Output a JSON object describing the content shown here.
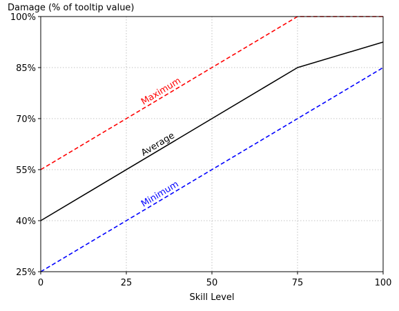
{
  "chart_data": {
    "type": "line",
    "title": "",
    "ylabel": "Damage (% of tooltip value)",
    "xlabel": "Skill Level",
    "xlim": [
      0,
      100
    ],
    "ylim": [
      25,
      100
    ],
    "xticks": [
      0,
      25,
      50,
      75,
      100
    ],
    "xtick_labels": [
      "0",
      "25",
      "50",
      "75",
      "100"
    ],
    "yticks": [
      25,
      40,
      55,
      70,
      85,
      100
    ],
    "ytick_labels": [
      "25%",
      "40%",
      "55%",
      "70%",
      "85%",
      "100%"
    ],
    "grid": true,
    "legend": "none",
    "series": [
      {
        "name": "Maximum",
        "color": "#ff0000",
        "style": "dashed",
        "x": [
          0,
          75,
          100
        ],
        "y": [
          55,
          100,
          100
        ]
      },
      {
        "name": "Average",
        "color": "#000000",
        "style": "solid",
        "x": [
          0,
          75,
          100
        ],
        "y": [
          40,
          85,
          92.5
        ]
      },
      {
        "name": "Minimum",
        "color": "#0000ff",
        "style": "dashed",
        "x": [
          0,
          75,
          100
        ],
        "y": [
          25,
          70,
          85
        ]
      }
    ],
    "annotations": [
      {
        "text": "Maximum",
        "color": "#ff0000",
        "x": 30,
        "y": 74,
        "angle": -31
      },
      {
        "text": "Average",
        "color": "#000000",
        "x": 30,
        "y": 59,
        "angle": -31
      },
      {
        "text": "Minimum",
        "color": "#0000ff",
        "x": 30,
        "y": 44,
        "angle": -31
      }
    ]
  }
}
